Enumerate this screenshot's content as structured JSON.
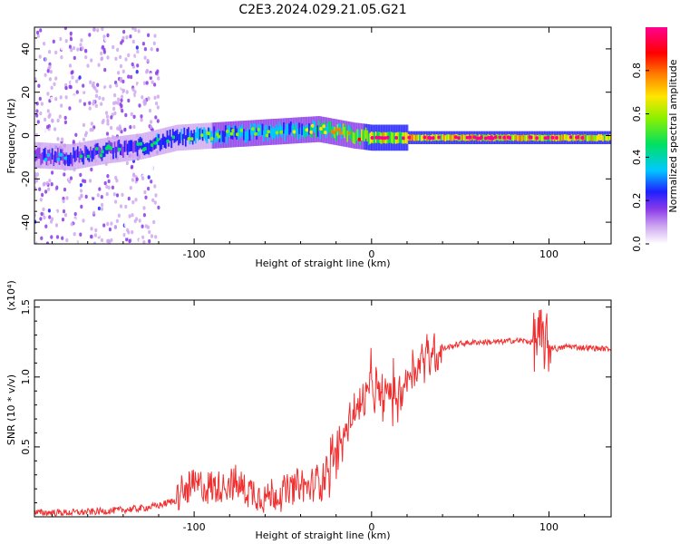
{
  "title": "C2E3.2024.029.21.05.G21",
  "chart_data": [
    {
      "type": "heatmap",
      "xlabel": "Height of straight line (km)",
      "ylabel": "Frequency (Hz)",
      "xlim": [
        -190,
        135
      ],
      "ylim": [
        -50,
        50
      ],
      "x_ticks": [
        -100,
        0,
        100
      ],
      "y_ticks": [
        -40,
        -20,
        0,
        20,
        40
      ],
      "colorbar": {
        "label": "Normalized spectral amplitude",
        "range": [
          0,
          1
        ],
        "ticks": [
          0.0,
          0.2,
          0.4,
          0.6,
          0.8
        ],
        "colormap": [
          "#ffffff",
          "#cfa8f0",
          "#8b3be8",
          "#2020ff",
          "#00c8ff",
          "#00e060",
          "#8cf000",
          "#ffe600",
          "#ff8000",
          "#ff0000",
          "#ff0090"
        ]
      },
      "ridge": {
        "x": [
          -190,
          -170,
          -150,
          -130,
          -110,
          -90,
          -70,
          -50,
          -30,
          -10,
          0,
          10,
          30,
          60,
          90,
          110,
          135
        ],
        "frequency": [
          -9,
          -10,
          -7,
          -5,
          -1,
          0,
          1,
          2,
          3,
          0,
          -1,
          -1,
          -1,
          -1,
          -1,
          -1,
          -1
        ],
        "amplitude": [
          0.3,
          0.35,
          0.4,
          0.4,
          0.45,
          0.5,
          0.5,
          0.55,
          0.6,
          0.75,
          0.9,
          0.9,
          0.95,
          0.95,
          0.95,
          0.95,
          0.95
        ]
      }
    },
    {
      "type": "line",
      "xlabel": "Height of straight line (km)",
      "ylabel": "SNR (10 * v/v)",
      "y_multiplier": "(x10⁴)",
      "xlim": [
        -190,
        135
      ],
      "ylim": [
        0,
        1.55
      ],
      "x_ticks": [
        -100,
        0,
        100
      ],
      "y_ticks": [
        0.5,
        1.0,
        1.5
      ],
      "y_tick_labels": [
        "0.5",
        "1.0",
        "1.5"
      ],
      "series": [
        {
          "color": "#f03030",
          "x": [
            -190,
            -170,
            -150,
            -130,
            -120,
            -110,
            -100,
            -90,
            -80,
            -70,
            -60,
            -50,
            -40,
            -35,
            -30,
            -25,
            -20,
            -15,
            -10,
            -5,
            0,
            5,
            10,
            15,
            20,
            25,
            30,
            40,
            50,
            60,
            70,
            80,
            85,
            90,
            95,
            100,
            105,
            110,
            120,
            135
          ],
          "y": [
            0.03,
            0.03,
            0.04,
            0.06,
            0.08,
            0.12,
            0.2,
            0.18,
            0.22,
            0.17,
            0.12,
            0.15,
            0.2,
            0.18,
            0.25,
            0.35,
            0.45,
            0.6,
            0.75,
            0.8,
            0.95,
            0.85,
            0.9,
            0.85,
            1.0,
            1.08,
            1.15,
            1.2,
            1.24,
            1.25,
            1.25,
            1.26,
            1.26,
            1.25,
            1.28,
            1.22,
            1.2,
            1.22,
            1.21,
            1.2
          ]
        }
      ]
    }
  ]
}
